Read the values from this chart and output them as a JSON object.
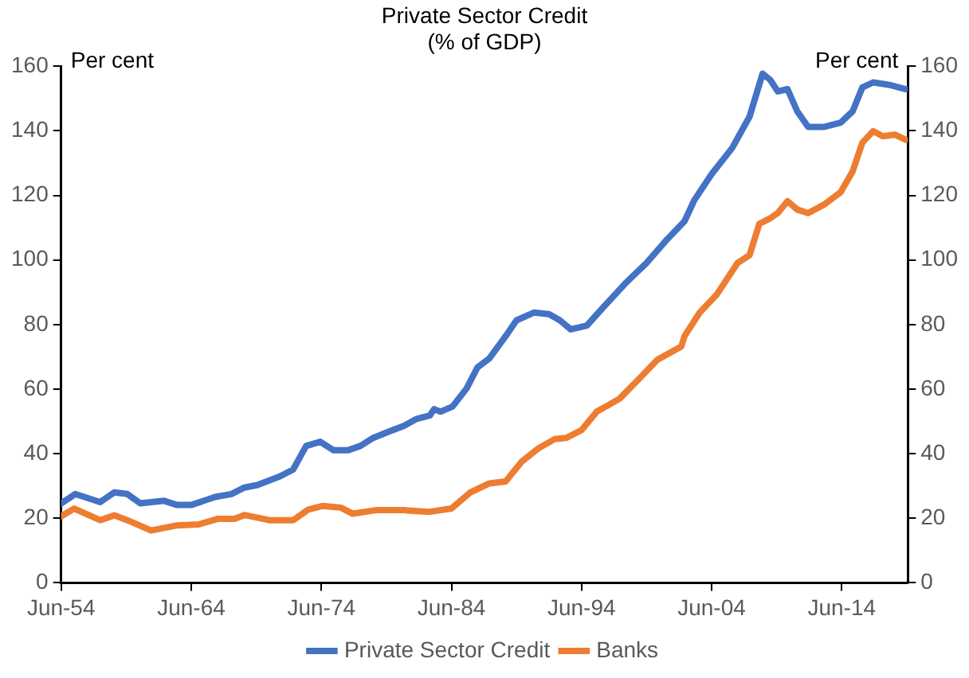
{
  "chart_data": {
    "type": "line",
    "title": "Private Sector Credit",
    "subtitle": "(% of GDP)",
    "ylabel": "Per cent",
    "y2label": "Per cent",
    "xlim": [
      "1954-06",
      "2019-07"
    ],
    "xticks": [
      {
        "value": "1954-06",
        "label": "Jun-54"
      },
      {
        "value": "1964-06",
        "label": "Jun-64"
      },
      {
        "value": "1974-06",
        "label": "Jun-74"
      },
      {
        "value": "1984-06",
        "label": "Jun-84"
      },
      {
        "value": "1994-06",
        "label": "Jun-94"
      },
      {
        "value": "2004-06",
        "label": "Jun-04"
      },
      {
        "value": "2014-06",
        "label": "Jun-14"
      }
    ],
    "ylim": [
      0,
      160
    ],
    "yticks": [
      0,
      20,
      40,
      60,
      80,
      100,
      120,
      140,
      160
    ],
    "y2lim": [
      0,
      160
    ],
    "y2ticks": [
      0,
      20,
      40,
      60,
      80,
      100,
      120,
      140,
      160
    ],
    "grid": false,
    "legend": "bottom",
    "marker": "none",
    "line_style": "solid",
    "series": [
      {
        "name": "Private Sector Credit",
        "color": "#4472c4",
        "x": [
          "1954-06",
          "1955-07",
          "1957-06",
          "1958-07",
          "1959-07",
          "1960-07",
          "1962-05",
          "1963-05",
          "1964-06",
          "1966-04",
          "1967-07",
          "1968-07",
          "1969-07",
          "1971-04",
          "1972-04",
          "1973-04",
          "1974-05",
          "1975-05",
          "1976-07",
          "1977-06",
          "1978-06",
          "1979-08",
          "1980-10",
          "1981-10",
          "1982-10",
          "1983-02",
          "1983-08",
          "1984-07",
          "1985-08",
          "1986-06",
          "1987-05",
          "1988-08",
          "1989-06",
          "1990-10",
          "1991-12",
          "1992-10",
          "1993-08",
          "1994-11",
          "1996-02",
          "1997-10",
          "1999-06",
          "2001-01",
          "2002-05",
          "2003-02",
          "2004-06",
          "2006-01",
          "2007-05",
          "2008-05",
          "2008-12",
          "2009-07",
          "2010-04",
          "2011-01",
          "2011-11",
          "2013-02",
          "2014-05",
          "2015-04",
          "2016-01",
          "2016-11",
          "2018-02",
          "2019-05"
        ],
        "values": [
          24.6,
          27.5,
          25,
          28,
          27.5,
          24.6,
          25.4,
          24.1,
          24.1,
          26.6,
          27.5,
          29.5,
          30.3,
          33,
          35.1,
          42.4,
          43.7,
          41.1,
          41.1,
          42.4,
          44.9,
          46.8,
          48.6,
          50.8,
          51.8,
          53.8,
          53,
          54.6,
          60.2,
          66.7,
          69.5,
          76.4,
          81.3,
          83.7,
          83.2,
          81.3,
          78.5,
          79.7,
          85.3,
          92.6,
          99.1,
          106.4,
          112,
          118.5,
          126.6,
          134.7,
          144.4,
          157.7,
          155.8,
          152.2,
          152.9,
          146,
          141.2,
          141.2,
          142.5,
          146,
          153.4,
          155,
          154.2,
          152.9
        ]
      },
      {
        "name": "Banks",
        "color": "#ed7d31",
        "x": [
          "1954-06",
          "1955-06",
          "1957-06",
          "1958-07",
          "1959-07",
          "1961-05",
          "1963-05",
          "1965-01",
          "1966-06",
          "1967-10",
          "1968-07",
          "1970-06",
          "1972-04",
          "1973-06",
          "1974-07",
          "1975-12",
          "1976-11",
          "1978-08",
          "1980-10",
          "1982-10",
          "1984-06",
          "1985-11",
          "1987-05",
          "1988-08",
          "1989-11",
          "1991-02",
          "1992-05",
          "1993-04",
          "1994-06",
          "1995-08",
          "1997-05",
          "1998-12",
          "2000-04",
          "2002-02",
          "2002-05",
          "2003-07",
          "2004-11",
          "2006-06",
          "2007-05",
          "2008-02",
          "2008-12",
          "2009-07",
          "2010-04",
          "2011-01",
          "2011-11",
          "2013-02",
          "2014-05",
          "2015-04",
          "2016-01",
          "2016-11",
          "2017-08",
          "2018-07",
          "2019-05"
        ],
        "values": [
          20.6,
          23,
          19.4,
          20.9,
          19.4,
          16.2,
          17.8,
          18.1,
          19.8,
          19.8,
          21,
          19.4,
          19.4,
          22.7,
          23.8,
          23.3,
          21.4,
          22.5,
          22.5,
          22,
          23,
          27.9,
          30.8,
          31.4,
          37.6,
          41.6,
          44.5,
          44.9,
          47.3,
          53,
          57,
          63.5,
          69.1,
          73.2,
          76.4,
          83.7,
          89.4,
          99.1,
          101.5,
          111.2,
          112.9,
          114.5,
          118.2,
          115.6,
          114.5,
          117.2,
          121,
          127.4,
          136.3,
          139.9,
          138.3,
          138.8,
          137.2
        ]
      }
    ]
  }
}
